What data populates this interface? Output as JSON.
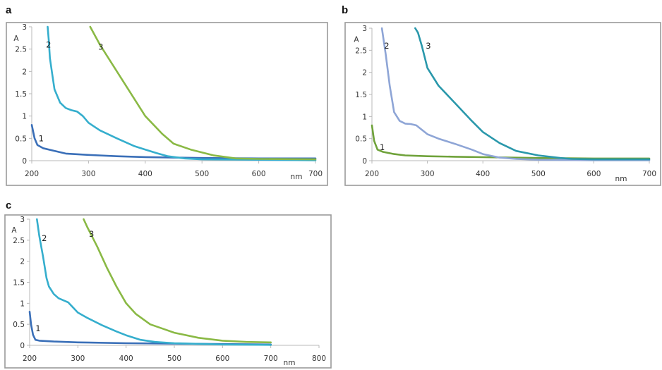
{
  "chart_data": [
    {
      "panel": "a",
      "type": "line",
      "xlabel": "nm",
      "ylabel": "A",
      "xlim": [
        200,
        700
      ],
      "ylim": [
        0,
        3
      ],
      "xticks": [
        200,
        300,
        400,
        500,
        600,
        700
      ],
      "yticks": [
        0,
        0.5,
        1,
        1.5,
        2,
        2.5,
        3
      ],
      "grid": false,
      "series": [
        {
          "name": "1",
          "color": "#3a6fb8",
          "x": [
            200,
            205,
            210,
            220,
            240,
            260,
            300,
            350,
            400,
            500,
            600,
            700
          ],
          "y": [
            0.8,
            0.5,
            0.35,
            0.28,
            0.22,
            0.16,
            0.13,
            0.1,
            0.08,
            0.06,
            0.05,
            0.05
          ],
          "label_at": [
            212,
            0.5
          ]
        },
        {
          "name": "2",
          "color": "#35aecd",
          "x": [
            228,
            230,
            232,
            236,
            240,
            250,
            260,
            270,
            280,
            290,
            300,
            320,
            350,
            380,
            400,
            420,
            440,
            470,
            500,
            600,
            700
          ],
          "y": [
            3,
            2.7,
            2.3,
            1.95,
            1.6,
            1.3,
            1.18,
            1.13,
            1.1,
            1.0,
            0.85,
            0.68,
            0.5,
            0.33,
            0.25,
            0.17,
            0.1,
            0.05,
            0.03,
            0.02,
            0.01
          ],
          "label_at": [
            225,
            2.6
          ]
        },
        {
          "name": "3",
          "color": "#8ab945",
          "x": [
            303,
            320,
            350,
            380,
            400,
            430,
            450,
            480,
            520,
            560,
            600,
            700
          ],
          "y": [
            3,
            2.6,
            2.0,
            1.4,
            1.0,
            0.6,
            0.38,
            0.25,
            0.12,
            0.05,
            0.04,
            0.03
          ],
          "label_at": [
            317,
            2.55
          ]
        }
      ]
    },
    {
      "panel": "b",
      "type": "line",
      "xlabel": "nm",
      "ylabel": "A",
      "xlim": [
        200,
        700
      ],
      "ylim": [
        0,
        3
      ],
      "xticks": [
        200,
        300,
        400,
        500,
        600,
        700
      ],
      "yticks": [
        0,
        0.5,
        1,
        1.5,
        2,
        2.5,
        3
      ],
      "grid": false,
      "series": [
        {
          "name": "1",
          "color": "#6fa23a",
          "x": [
            200,
            204,
            210,
            220,
            240,
            260,
            300,
            350,
            400,
            500,
            600,
            700
          ],
          "y": [
            0.8,
            0.45,
            0.25,
            0.2,
            0.15,
            0.12,
            0.1,
            0.09,
            0.08,
            0.06,
            0.05,
            0.05
          ],
          "label_at": [
            214,
            0.3
          ]
        },
        {
          "name": "2",
          "color": "#8ea5d6",
          "x": [
            218,
            225,
            232,
            240,
            250,
            260,
            270,
            280,
            290,
            300,
            320,
            350,
            380,
            400,
            430,
            460,
            500,
            600,
            700
          ],
          "y": [
            3,
            2.4,
            1.7,
            1.1,
            0.9,
            0.84,
            0.83,
            0.8,
            0.7,
            0.6,
            0.5,
            0.38,
            0.25,
            0.15,
            0.07,
            0.04,
            0.02,
            0.01,
            0.01
          ],
          "label_at": [
            222,
            2.6
          ]
        },
        {
          "name": "3",
          "color": "#2a98ab",
          "x": [
            278,
            283,
            290,
            300,
            320,
            350,
            380,
            400,
            430,
            460,
            500,
            540,
            560,
            600,
            700
          ],
          "y": [
            3,
            2.9,
            2.6,
            2.1,
            1.7,
            1.3,
            0.9,
            0.65,
            0.4,
            0.22,
            0.12,
            0.06,
            0.04,
            0.03,
            0.03
          ],
          "label_at": [
            297,
            2.6
          ]
        }
      ]
    },
    {
      "panel": "c",
      "type": "line",
      "xlabel": "nm",
      "ylabel": "A",
      "xlim": [
        200,
        800
      ],
      "ylim": [
        0,
        3
      ],
      "xticks": [
        200,
        300,
        400,
        500,
        600,
        700,
        800
      ],
      "yticks": [
        0,
        0.5,
        1,
        1.5,
        2,
        2.5,
        3
      ],
      "grid": false,
      "series": [
        {
          "name": "1",
          "color": "#3a6fb8",
          "x": [
            200,
            203,
            207,
            212,
            220,
            250,
            300,
            400,
            500,
            600,
            700
          ],
          "y": [
            0.8,
            0.5,
            0.25,
            0.13,
            0.11,
            0.09,
            0.07,
            0.05,
            0.04,
            0.03,
            0.02
          ],
          "label_at": [
            212,
            0.4
          ]
        },
        {
          "name": "2",
          "color": "#35aecd",
          "x": [
            215,
            220,
            228,
            235,
            240,
            250,
            260,
            280,
            290,
            300,
            320,
            350,
            380,
            400,
            430,
            460,
            500,
            600,
            700
          ],
          "y": [
            3,
            2.6,
            2.1,
            1.6,
            1.4,
            1.22,
            1.12,
            1.02,
            0.9,
            0.78,
            0.65,
            0.48,
            0.33,
            0.24,
            0.13,
            0.08,
            0.05,
            0.02,
            0.01
          ],
          "label_at": [
            225,
            2.55
          ]
        },
        {
          "name": "3",
          "color": "#8ab945",
          "x": [
            312,
            320,
            340,
            360,
            380,
            400,
            420,
            450,
            480,
            500,
            550,
            600,
            650,
            700
          ],
          "y": [
            3,
            2.8,
            2.35,
            1.85,
            1.4,
            1.0,
            0.75,
            0.5,
            0.38,
            0.3,
            0.18,
            0.11,
            0.08,
            0.07
          ],
          "label_at": [
            323,
            2.65
          ]
        }
      ]
    }
  ]
}
